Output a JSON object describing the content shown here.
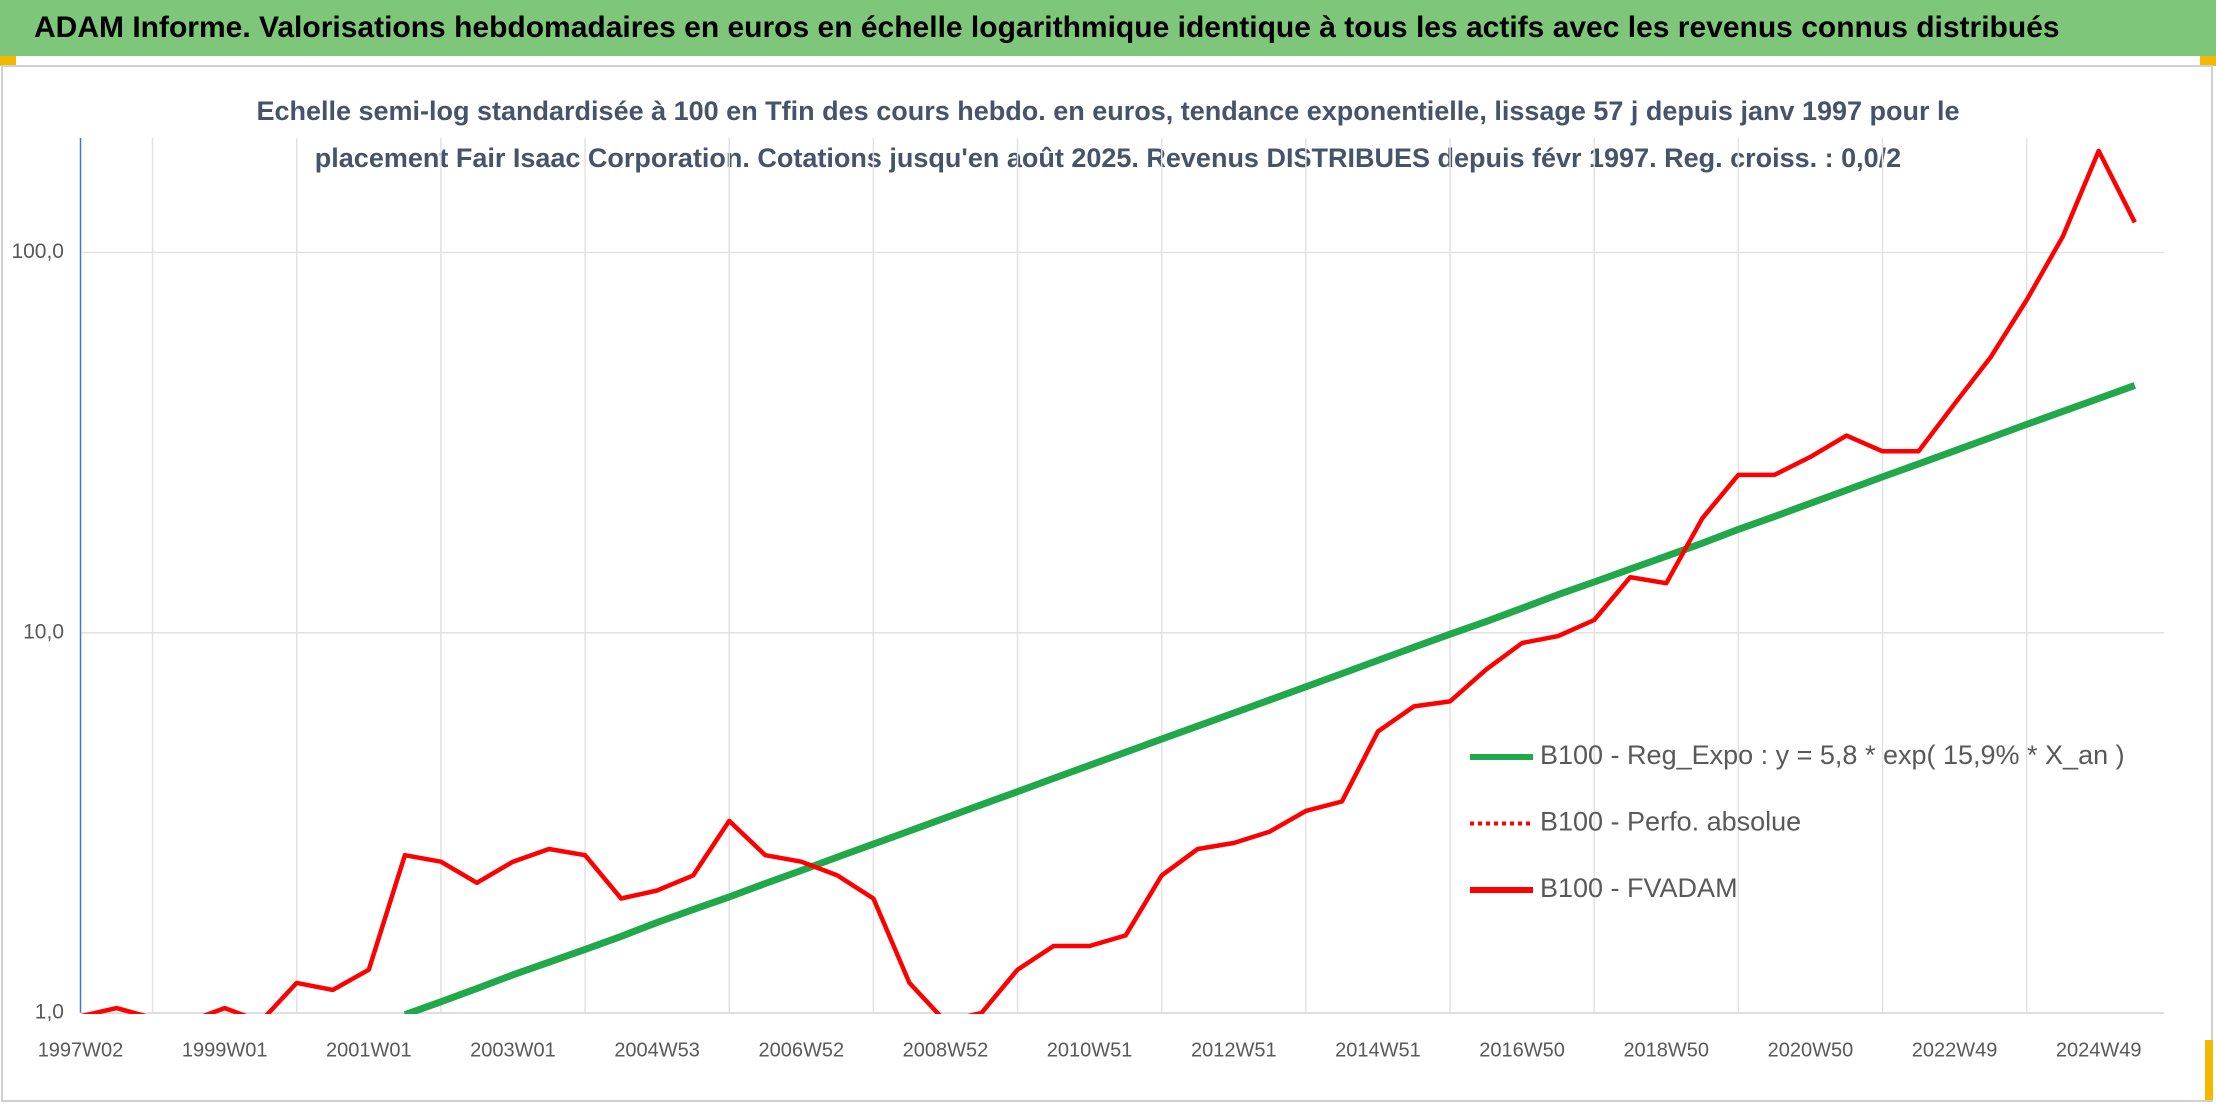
{
  "chart_data": {
    "type": "line",
    "title": "ADAM Informe. Valorisations hebdomadaires en euros en échelle logarithmique identique à tous les actifs avec les revenus connus distribués",
    "subtitle": [
      "Echelle semi-log standardisée à 100 en Tfin des cours hebdo. en euros, tendance exponentielle, lissage 57 j depuis janv 1997 pour le",
      "placement Fair Isaac Corporation. Cotations jusqu'en août 2025. Revenus DISTRIBUES depuis févr 1997. Reg. croiss. : 0,0/2"
    ],
    "categories": [
      "1997W02",
      null,
      null,
      null,
      "1999W01",
      null,
      null,
      null,
      "2001W01",
      null,
      null,
      null,
      "2003W01",
      null,
      null,
      null,
      "2004W53",
      null,
      null,
      null,
      "2006W52",
      null,
      null,
      null,
      "2008W52",
      null,
      null,
      null,
      "2010W51",
      null,
      null,
      null,
      "2012W51",
      null,
      null,
      null,
      "2014W51",
      null,
      null,
      null,
      "2016W50",
      null,
      null,
      null,
      "2018W50",
      null,
      null,
      null,
      "2020W50",
      null,
      null,
      null,
      "2022W49",
      null,
      null,
      null,
      "2024W49",
      null
    ],
    "log_scale": true,
    "ylim": [
      1,
      200
    ],
    "yticks": [
      {
        "value": 1,
        "label": "1,0"
      },
      {
        "value": 10,
        "label": "10,0"
      },
      {
        "value": 100,
        "label": "100,0"
      }
    ],
    "grid": true,
    "legend": "right",
    "series": [
      {
        "name": "B100 - Reg_Expo : y = 5,8 * exp( 15,9% *  X_an )",
        "color": "#21a84a",
        "style": "solid",
        "values": [
          null,
          null,
          null,
          null,
          null,
          null,
          null,
          null,
          null,
          0.99,
          1.07,
          1.16,
          1.26,
          1.36,
          1.47,
          1.59,
          1.73,
          1.87,
          2.02,
          2.19,
          2.37,
          2.57,
          2.78,
          3.01,
          3.26,
          3.53,
          3.82,
          4.14,
          4.48,
          4.85,
          5.25,
          5.68,
          6.15,
          6.66,
          7.21,
          7.81,
          8.46,
          9.16,
          9.91,
          10.7,
          11.6,
          12.6,
          13.6,
          14.7,
          15.9,
          17.2,
          18.7,
          20.2,
          21.9,
          23.7,
          25.7,
          27.8,
          30.1,
          32.6,
          35.3,
          38.2,
          41.3,
          44.7
        ]
      },
      {
        "name": "B100 - Perfo. absolue",
        "color": "#ff0000",
        "style": "dotted",
        "values": [
          null,
          null,
          null,
          null,
          null,
          null,
          null,
          null,
          null,
          null,
          null,
          null,
          null,
          null,
          null,
          null,
          null,
          null,
          null,
          null,
          null,
          null,
          null,
          null,
          null,
          null,
          null,
          null,
          null,
          null,
          null,
          null,
          null,
          null,
          null,
          null,
          null,
          null,
          null,
          null,
          null,
          null,
          null,
          null,
          null,
          null,
          null,
          null,
          null,
          null,
          null,
          null,
          null,
          null,
          null,
          null,
          null,
          null
        ]
      },
      {
        "name": "B100 - FVADAM",
        "color": "#ff0000",
        "style": "solid",
        "values": [
          0.98,
          1.03,
          0.97,
          0.95,
          1.03,
          0.95,
          1.2,
          1.15,
          1.3,
          2.6,
          2.5,
          2.2,
          2.5,
          2.7,
          2.6,
          2.0,
          2.1,
          2.3,
          3.2,
          2.6,
          2.5,
          2.3,
          2.0,
          1.2,
          0.95,
          1.0,
          1.3,
          1.5,
          1.5,
          1.6,
          2.3,
          2.7,
          2.8,
          3.0,
          3.4,
          3.6,
          5.5,
          6.4,
          6.6,
          8.0,
          9.4,
          9.8,
          10.8,
          14,
          13.5,
          20,
          26,
          26,
          29,
          33,
          30,
          30,
          40,
          53,
          75,
          110,
          185,
          120
        ]
      }
    ]
  }
}
